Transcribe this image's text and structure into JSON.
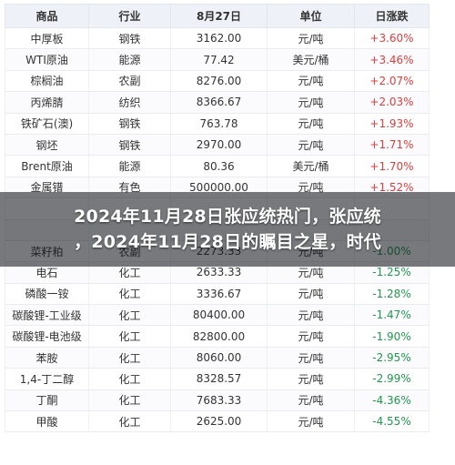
{
  "table": {
    "headers": [
      "商品",
      "行业",
      "8月27日",
      "单位",
      "日涨跌"
    ],
    "rows": [
      {
        "name": "中厚板",
        "sector": "钢铁",
        "price": "3162.00",
        "unit": "元/吨",
        "change": "+3.60%",
        "dir": "up"
      },
      {
        "name": "WTI原油",
        "sector": "能源",
        "price": "77.42",
        "unit": "美元/桶",
        "change": "+3.46%",
        "dir": "up"
      },
      {
        "name": "棕榈油",
        "sector": "农副",
        "price": "8276.00",
        "unit": "元/吨",
        "change": "+2.07%",
        "dir": "up"
      },
      {
        "name": "丙烯腈",
        "sector": "纺织",
        "price": "8366.67",
        "unit": "元/吨",
        "change": "+2.03%",
        "dir": "up"
      },
      {
        "name": "铁矿石(澳)",
        "sector": "钢铁",
        "price": "763.78",
        "unit": "元/吨",
        "change": "+1.93%",
        "dir": "up"
      },
      {
        "name": "钢坯",
        "sector": "钢铁",
        "price": "2970.00",
        "unit": "元/吨",
        "change": "+1.71%",
        "dir": "up"
      },
      {
        "name": "Brent原油",
        "sector": "能源",
        "price": "80.36",
        "unit": "美元/桶",
        "change": "+1.70%",
        "dir": "up"
      },
      {
        "name": "金属镨",
        "sector": "有色",
        "price": "500000.00",
        "unit": "元/吨",
        "change": "+1.52%",
        "dir": "up"
      },
      {
        "name": "",
        "sector": "",
        "price": "",
        "unit": "",
        "change": "",
        "dir": "up"
      },
      {
        "name": "",
        "sector": "",
        "price": "",
        "unit": "",
        "change": "",
        "dir": "up"
      },
      {
        "name": "菜籽粕",
        "sector": "农副",
        "price": "2273.33",
        "unit": "元/吨",
        "change": "-1.00%",
        "dir": "down"
      },
      {
        "name": "电石",
        "sector": "化工",
        "price": "2633.33",
        "unit": "元/吨",
        "change": "-1.25%",
        "dir": "down"
      },
      {
        "name": "磷酸一铵",
        "sector": "化工",
        "price": "3336.67",
        "unit": "元/吨",
        "change": "-1.28%",
        "dir": "down"
      },
      {
        "name": "碳酸锂-工业级",
        "sector": "化工",
        "price": "80400.00",
        "unit": "元/吨",
        "change": "-1.47%",
        "dir": "down"
      },
      {
        "name": "碳酸锂-电池级",
        "sector": "化工",
        "price": "82800.00",
        "unit": "元/吨",
        "change": "-1.90%",
        "dir": "down"
      },
      {
        "name": "苯胺",
        "sector": "化工",
        "price": "8060.00",
        "unit": "元/吨",
        "change": "-2.95%",
        "dir": "down"
      },
      {
        "name": "1,4-丁二醇",
        "sector": "化工",
        "price": "8328.57",
        "unit": "元/吨",
        "change": "-2.99%",
        "dir": "down"
      },
      {
        "name": "丁酮",
        "sector": "化工",
        "price": "7683.33",
        "unit": "元/吨",
        "change": "-4.36%",
        "dir": "down"
      },
      {
        "name": "甲酸",
        "sector": "化工",
        "price": "2625.00",
        "unit": "元/吨",
        "change": "-4.55%",
        "dir": "down"
      }
    ]
  },
  "overlay": {
    "line1": "2024年11月28日张应统热门，张应统",
    "line2": "，2024年11月28日的瞩目之星，时代"
  },
  "colors": {
    "up": "#e23c3c",
    "down": "#1e9a4b",
    "header_bg": "#eef1f7"
  }
}
